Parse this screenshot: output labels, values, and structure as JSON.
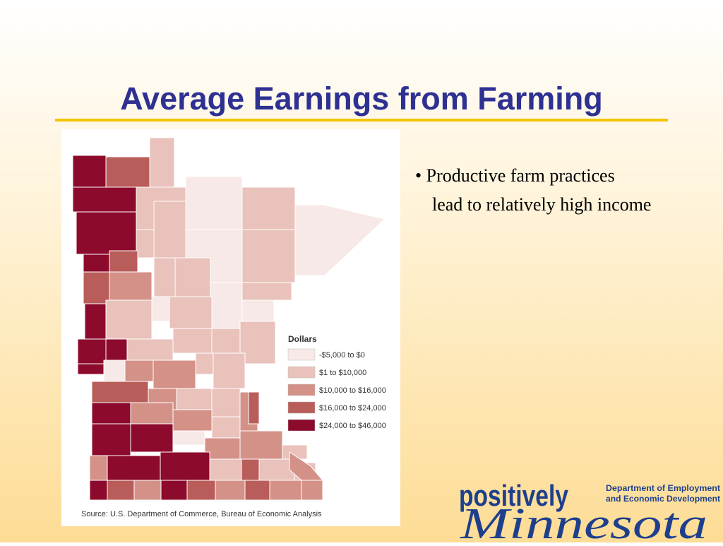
{
  "title": "Average Earnings from Farming",
  "map": {
    "legend": {
      "title": "Dollars",
      "items": [
        {
          "label": "-$5,000 to $0",
          "color": "#f7e9e7"
        },
        {
          "label": "$1 to $10,000",
          "color": "#e9c2bb"
        },
        {
          "label": "$10,000 to $16,000",
          "color": "#d49188"
        },
        {
          "label": "$16,000 to $24,000",
          "color": "#b95d5a"
        },
        {
          "label": "$24,000 to $46,000",
          "color": "#8c0a2c"
        }
      ]
    },
    "source": "Source: U.S. Department of Commerce, Bureau of Economic Analysis"
  },
  "bullets": [
    {
      "line1": "• Productive farm practices",
      "line2": "lead to relatively high income"
    }
  ],
  "logo": {
    "top": "positively",
    "script": "Minnesota",
    "dept1": "Department of Employment",
    "dept2": "and Economic Development"
  }
}
